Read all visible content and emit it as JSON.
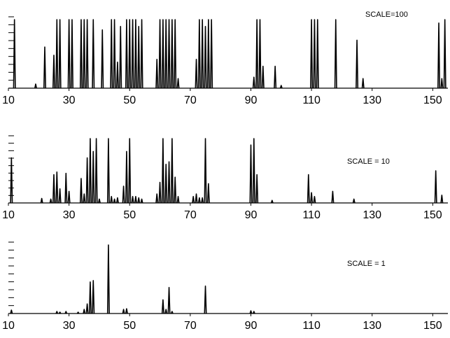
{
  "chart_data": [
    {
      "type": "line",
      "title": "",
      "annotation": "SCALE=100",
      "xlabel": "",
      "ylabel": "",
      "xlim": [
        10,
        155
      ],
      "ylim": [
        0,
        100
      ],
      "x_ticks": [
        "10",
        "30",
        "50",
        "70",
        "90",
        "110",
        "130",
        "150"
      ],
      "y_ticks": 9,
      "grid": false,
      "peaks": [
        [
          12,
          100
        ],
        [
          19,
          6
        ],
        [
          22,
          60
        ],
        [
          25,
          48
        ],
        [
          26,
          100
        ],
        [
          27,
          100
        ],
        [
          30,
          100
        ],
        [
          31,
          100
        ],
        [
          34,
          100
        ],
        [
          35,
          100
        ],
        [
          36,
          100
        ],
        [
          38,
          100
        ],
        [
          41,
          85
        ],
        [
          44,
          100
        ],
        [
          45,
          100
        ],
        [
          46,
          38
        ],
        [
          47,
          90
        ],
        [
          49,
          100
        ],
        [
          50,
          100
        ],
        [
          51,
          100
        ],
        [
          52,
          100
        ],
        [
          53,
          90
        ],
        [
          54,
          100
        ],
        [
          59,
          42
        ],
        [
          60,
          100
        ],
        [
          61,
          100
        ],
        [
          62,
          100
        ],
        [
          63,
          100
        ],
        [
          64,
          100
        ],
        [
          65,
          100
        ],
        [
          66,
          14
        ],
        [
          72,
          42
        ],
        [
          73,
          100
        ],
        [
          74,
          100
        ],
        [
          75,
          90
        ],
        [
          76,
          100
        ],
        [
          77,
          100
        ],
        [
          91,
          16
        ],
        [
          92,
          100
        ],
        [
          93,
          100
        ],
        [
          94,
          32
        ],
        [
          98,
          32
        ],
        [
          100,
          4
        ],
        [
          110,
          100
        ],
        [
          111,
          100
        ],
        [
          112,
          100
        ],
        [
          118,
          100
        ],
        [
          125,
          70
        ],
        [
          127,
          14
        ],
        [
          152,
          95
        ],
        [
          153,
          14
        ],
        [
          154,
          100
        ]
      ]
    },
    {
      "type": "line",
      "title": "",
      "annotation": "SCALE = 10",
      "xlabel": "",
      "ylabel": "",
      "xlim": [
        10,
        155
      ],
      "ylim": [
        0,
        100
      ],
      "x_ticks": [
        "10",
        "30",
        "50",
        "70",
        "90",
        "110",
        "130",
        "150"
      ],
      "y_ticks": 9,
      "grid": false,
      "peaks": [
        [
          11,
          70
        ],
        [
          21,
          7
        ],
        [
          24,
          6
        ],
        [
          25,
          44
        ],
        [
          26,
          48
        ],
        [
          27,
          22
        ],
        [
          29,
          46
        ],
        [
          30,
          18
        ],
        [
          34,
          38
        ],
        [
          35,
          14
        ],
        [
          36,
          70
        ],
        [
          37,
          100
        ],
        [
          38,
          80
        ],
        [
          39,
          100
        ],
        [
          40,
          6
        ],
        [
          43,
          100
        ],
        [
          44,
          10
        ],
        [
          45,
          6
        ],
        [
          46,
          8
        ],
        [
          48,
          26
        ],
        [
          49,
          80
        ],
        [
          50,
          100
        ],
        [
          51,
          10
        ],
        [
          52,
          10
        ],
        [
          53,
          8
        ],
        [
          54,
          6
        ],
        [
          59,
          14
        ],
        [
          60,
          32
        ],
        [
          61,
          100
        ],
        [
          62,
          60
        ],
        [
          63,
          64
        ],
        [
          64,
          100
        ],
        [
          65,
          40
        ],
        [
          66,
          10
        ],
        [
          71,
          10
        ],
        [
          72,
          14
        ],
        [
          73,
          8
        ],
        [
          74,
          8
        ],
        [
          75,
          100
        ],
        [
          76,
          30
        ],
        [
          90,
          90
        ],
        [
          91,
          100
        ],
        [
          92,
          44
        ],
        [
          97,
          4
        ],
        [
          109,
          44
        ],
        [
          110,
          16
        ],
        [
          111,
          10
        ],
        [
          117,
          18
        ],
        [
          124,
          6
        ],
        [
          151,
          50
        ],
        [
          153,
          12
        ]
      ]
    },
    {
      "type": "line",
      "title": "",
      "annotation": "SCALE = 1",
      "xlabel": "",
      "ylabel": "",
      "xlim": [
        10,
        155
      ],
      "ylim": [
        0,
        100
      ],
      "x_ticks": [
        "10",
        "30",
        "50",
        "70",
        "90",
        "110",
        "130",
        "150"
      ],
      "y_ticks": 9,
      "grid": false,
      "peaks": [
        [
          11,
          5
        ],
        [
          26,
          3
        ],
        [
          27,
          2
        ],
        [
          29,
          3
        ],
        [
          33,
          2
        ],
        [
          35,
          6
        ],
        [
          36,
          14
        ],
        [
          37,
          46
        ],
        [
          38,
          48
        ],
        [
          43,
          100
        ],
        [
          48,
          6
        ],
        [
          49,
          7
        ],
        [
          61,
          20
        ],
        [
          62,
          6
        ],
        [
          63,
          38
        ],
        [
          64,
          3
        ],
        [
          75,
          40
        ],
        [
          90,
          4
        ],
        [
          91,
          3
        ]
      ]
    }
  ]
}
